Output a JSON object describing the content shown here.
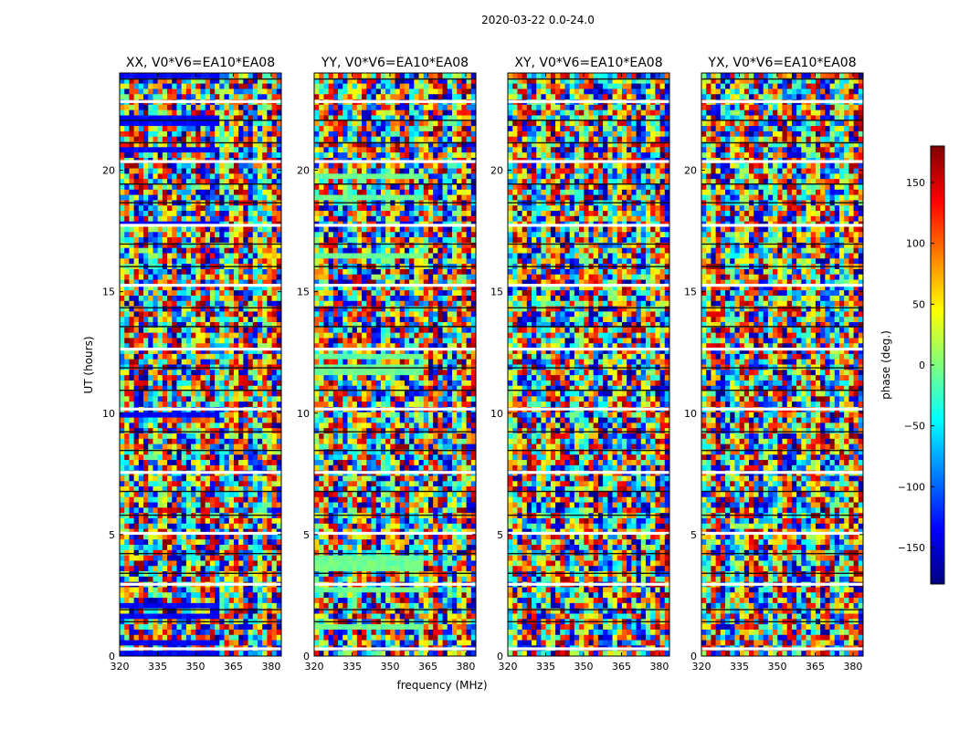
{
  "figure": {
    "suptitle": "2020-03-22 0.0-24.0",
    "xlabel": "frequency (MHz)",
    "ylabel": "UT (hours)"
  },
  "colorbar": {
    "label": "phase (deg.)",
    "ticks": [
      150,
      100,
      50,
      0,
      -50,
      -100,
      -150
    ],
    "tick_labels": [
      "150",
      "100",
      "50",
      "0",
      "−50",
      "−100",
      "−150"
    ],
    "range": [
      -180,
      180
    ],
    "colormap": "jet",
    "colormap_stops": [
      "#00007f",
      "#0000ff",
      "#007fff",
      "#00ffff",
      "#7fff7f",
      "#ffff00",
      "#ff7f00",
      "#ff0000",
      "#7f0000"
    ]
  },
  "chart_data": [
    {
      "type": "heatmap",
      "title": "XX, V0*V6=EA10*EA08",
      "x_tick_labels": [
        "320",
        "335",
        "350",
        "365",
        "380"
      ],
      "x_ticks": [
        320,
        335,
        350,
        365,
        380
      ],
      "y_tick_labels": [
        "0",
        "5",
        "10",
        "15",
        "20"
      ],
      "y_ticks": [
        0,
        5,
        10,
        15,
        20
      ],
      "xlim": [
        320,
        384
      ],
      "ylim": [
        0,
        24
      ]
    },
    {
      "type": "heatmap",
      "title": "YY, V0*V6=EA10*EA08",
      "x_tick_labels": [
        "320",
        "335",
        "350",
        "365",
        "380"
      ],
      "x_ticks": [
        320,
        335,
        350,
        365,
        380
      ],
      "y_tick_labels": [
        "0",
        "5",
        "10",
        "15",
        "20"
      ],
      "y_ticks": [
        0,
        5,
        10,
        15,
        20
      ],
      "xlim": [
        320,
        384
      ],
      "ylim": [
        0,
        24
      ]
    },
    {
      "type": "heatmap",
      "title": "XY, V0*V6=EA10*EA08",
      "x_tick_labels": [
        "320",
        "335",
        "350",
        "365",
        "380"
      ],
      "x_ticks": [
        320,
        335,
        350,
        365,
        380
      ],
      "y_tick_labels": [
        "0",
        "5",
        "10",
        "15",
        "20"
      ],
      "y_ticks": [
        0,
        5,
        10,
        15,
        20
      ],
      "xlim": [
        320,
        384
      ],
      "ylim": [
        0,
        24
      ]
    },
    {
      "type": "heatmap",
      "title": "YX, V0*V6=EA10*EA08",
      "x_tick_labels": [
        "320",
        "335",
        "350",
        "365",
        "380"
      ],
      "x_ticks": [
        320,
        335,
        350,
        365,
        380
      ],
      "y_tick_labels": [
        "0",
        "5",
        "10",
        "15",
        "20"
      ],
      "y_ticks": [
        0,
        5,
        10,
        15,
        20
      ],
      "xlim": [
        320,
        384
      ],
      "ylim": [
        0,
        24
      ]
    }
  ]
}
